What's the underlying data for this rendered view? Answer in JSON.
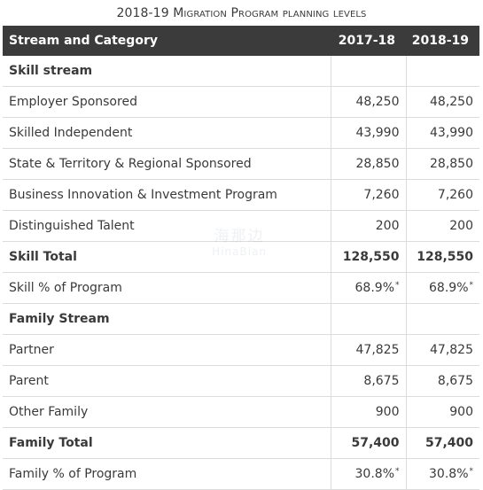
{
  "caption": {
    "prefix": "2018-19 ",
    "rest": "Migration Program planning levels"
  },
  "table": {
    "headers": [
      "Stream and Category",
      "2017-18",
      "2018-19"
    ],
    "rows": [
      {
        "type": "section",
        "label": "Skill stream",
        "v1": "",
        "v2": ""
      },
      {
        "type": "data",
        "label": "Employer Sponsored",
        "v1": "48,250",
        "v2": "48,250"
      },
      {
        "type": "data",
        "label": "Skilled Independent",
        "v1": "43,990",
        "v2": "43,990"
      },
      {
        "type": "data",
        "label": "State & Territory & Regional Sponsored",
        "v1": "28,850",
        "v2": "28,850"
      },
      {
        "type": "data",
        "label": "Business Innovation & Investment Program",
        "v1": "7,260",
        "v2": "7,260"
      },
      {
        "type": "data",
        "label": "Distinguished Talent",
        "v1": "200",
        "v2": "200"
      },
      {
        "type": "total",
        "label": "Skill Total",
        "v1": "128,550",
        "v2": "128,550"
      },
      {
        "type": "data",
        "label": "Skill % of Program",
        "v1": "68.9%",
        "v2": "68.9%",
        "note": "*"
      },
      {
        "type": "section",
        "label": "Family Stream",
        "v1": "",
        "v2": ""
      },
      {
        "type": "data",
        "label": "Partner",
        "v1": "47,825",
        "v2": "47,825"
      },
      {
        "type": "data",
        "label": "Parent",
        "v1": "8,675",
        "v2": "8,675"
      },
      {
        "type": "data",
        "label": "Other Family",
        "v1": "900",
        "v2": "900"
      },
      {
        "type": "total",
        "label": "Family Total",
        "v1": "57,400",
        "v2": "57,400"
      },
      {
        "type": "data",
        "label": "Family % of Program",
        "v1": "30.8%",
        "v2": "30.8%",
        "note": "*"
      }
    ]
  },
  "watermark": {
    "line1": "海那边",
    "line2": "HinaBian"
  }
}
